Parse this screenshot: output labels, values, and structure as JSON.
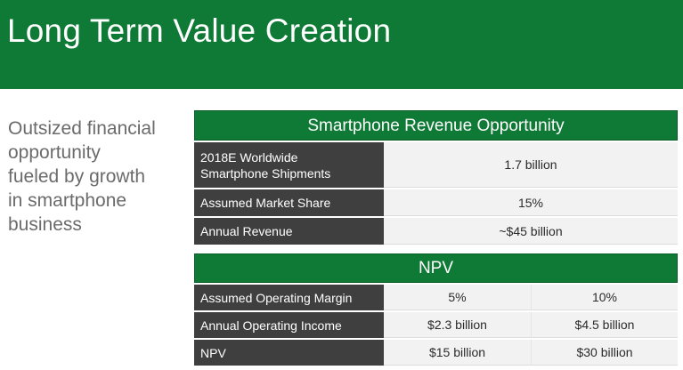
{
  "slide": {
    "title": "Long Term Value Creation",
    "subtitle_lines": [
      "Outsized financial",
      "opportunity",
      "fueled by growth",
      "in smartphone",
      "business"
    ]
  },
  "revenue_table": {
    "heading": "Smartphone Revenue Opportunity",
    "rows": [
      {
        "label_lines": [
          "2018E Worldwide",
          "Smartphone Shipments"
        ],
        "value": "1.7 billion"
      },
      {
        "label_lines": [
          "Assumed Market Share"
        ],
        "value": "15%"
      },
      {
        "label_lines": [
          "Annual Revenue"
        ],
        "value": "~$45 billion"
      }
    ]
  },
  "npv_table": {
    "heading": "NPV",
    "rows": [
      {
        "label": "Assumed Operating Margin",
        "values": [
          "5%",
          "10%"
        ]
      },
      {
        "label": "Annual Operating Income",
        "values": [
          "$2.3 billion",
          "$4.5 billion"
        ]
      },
      {
        "label": "NPV",
        "values": [
          "$15 billion",
          "$30 billion"
        ]
      }
    ]
  },
  "colors": {
    "brand_green": "#0e7a35",
    "label_cell": "#3f3f3f",
    "value_cell": "#f2f2f2",
    "subtitle_text": "#6b6b6b"
  }
}
